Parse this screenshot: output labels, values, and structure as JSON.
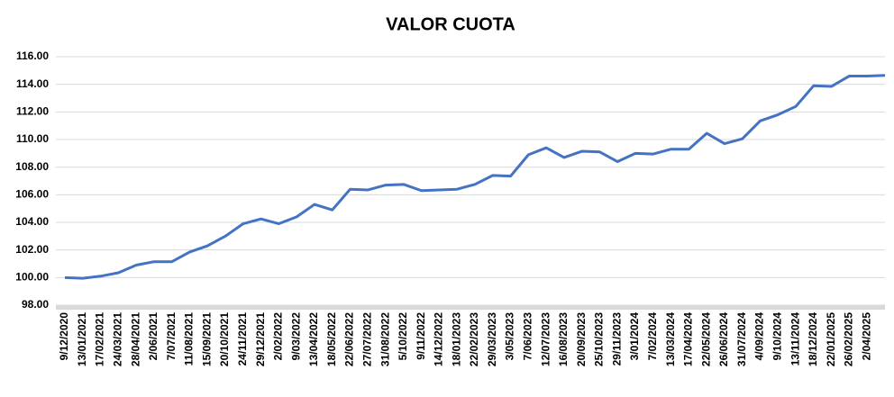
{
  "chart_data": {
    "type": "line",
    "title": "VALOR CUOTA",
    "categories": [
      "9/12/2020",
      "13/01/2021",
      "17/02/2021",
      "24/03/2021",
      "28/04/2021",
      "2/06/2021",
      "7/07/2021",
      "11/08/2021",
      "15/09/2021",
      "20/10/2021",
      "24/11/2021",
      "29/12/2021",
      "2/02/2022",
      "9/03/2022",
      "13/04/2022",
      "18/05/2022",
      "22/06/2022",
      "27/07/2022",
      "31/08/2022",
      "5/10/2022",
      "9/11/2022",
      "14/12/2022",
      "18/01/2023",
      "22/02/2023",
      "29/03/2023",
      "3/05/2023",
      "7/06/2023",
      "12/07/2023",
      "16/08/2023",
      "20/09/2023",
      "25/10/2023",
      "29/11/2023",
      "3/01/2024",
      "7/02/2024",
      "13/03/2024",
      "17/04/2024",
      "22/05/2024",
      "26/06/2024",
      "31/07/2024",
      "4/09/2024",
      "9/10/2024",
      "13/11/2024",
      "18/12/2024",
      "22/01/2025",
      "26/02/2025",
      "2/04/2025",
      null
    ],
    "series": [
      {
        "name": "VALOR CUOTA",
        "color": "#4472c4",
        "values": [
          100.0,
          99.95,
          100.1,
          100.35,
          100.9,
          101.15,
          101.15,
          101.85,
          102.3,
          103.0,
          103.9,
          104.25,
          103.9,
          104.4,
          105.3,
          104.9,
          106.4,
          106.35,
          106.7,
          106.75,
          106.3,
          106.35,
          106.4,
          106.75,
          107.4,
          107.35,
          108.9,
          109.4,
          108.7,
          109.15,
          109.1,
          108.4,
          109.0,
          108.95,
          109.3,
          109.3,
          110.45,
          109.7,
          110.05,
          111.35,
          111.8,
          112.4,
          113.9,
          113.85,
          114.6,
          114.6,
          114.65
        ]
      }
    ],
    "ylim": [
      98,
      116
    ],
    "yticks": [
      {
        "value": 98,
        "label": "98.00"
      },
      {
        "value": 100,
        "label": "100.00"
      },
      {
        "value": 102,
        "label": "102.00"
      },
      {
        "value": 104,
        "label": "104.00"
      },
      {
        "value": 106,
        "label": "106.00"
      },
      {
        "value": 108,
        "label": "108.00"
      },
      {
        "value": 110,
        "label": "110.00"
      },
      {
        "value": 112,
        "label": "112.00"
      },
      {
        "value": 114,
        "label": "114.00"
      },
      {
        "value": 116,
        "label": "116.00"
      }
    ],
    "grid": true
  }
}
